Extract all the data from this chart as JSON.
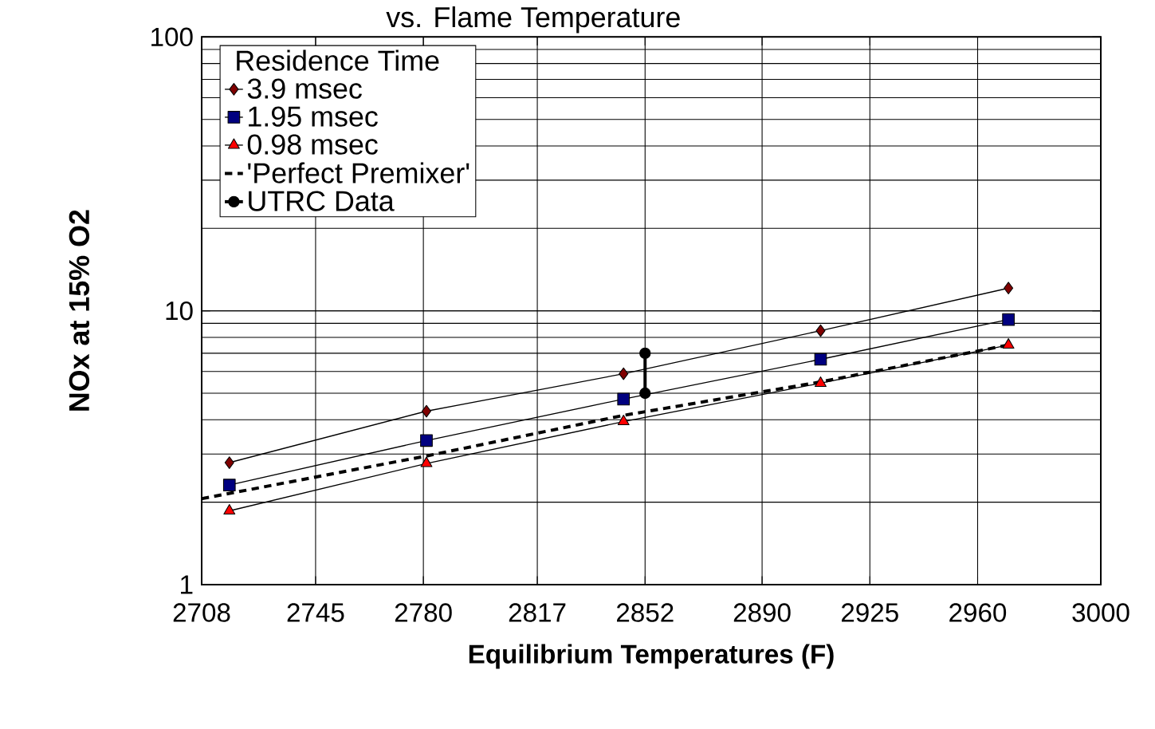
{
  "chart_data": {
    "type": "line",
    "title": "vs. Flame Temperature",
    "xlabel": "Equilibrium Temperatures (F)",
    "ylabel": "NOx at 15% O2",
    "legend_title": "Residence Time",
    "log": "y",
    "grid": true,
    "legend": "top left",
    "xlim": [
      2708,
      3000
    ],
    "xticks": [
      2708,
      2745,
      2780,
      2817,
      2852,
      2890,
      2925,
      2960,
      3000
    ],
    "ylim": [
      1,
      100
    ],
    "yticks": [
      1,
      10,
      100
    ],
    "series": [
      {
        "name": "3.9  msec",
        "color": "#800000",
        "marker": "diamond",
        "line_style": "solid",
        "x": [
          2717,
          2781,
          2845,
          2909,
          2970
        ],
        "values": [
          2.79,
          4.3,
          5.89,
          8.46,
          12.1
        ]
      },
      {
        "name": "1.95 msec",
        "color": "#000080",
        "marker": "square",
        "line_style": "solid",
        "x": [
          2717,
          2781,
          2845,
          2909,
          2970
        ],
        "values": [
          2.31,
          3.36,
          4.76,
          6.65,
          9.29
        ]
      },
      {
        "name": "0.98 msec",
        "color": "#ff0000",
        "marker": "triangle",
        "line_style": "solid",
        "x": [
          2717,
          2781,
          2845,
          2909,
          2970
        ],
        "values": [
          1.86,
          2.77,
          3.94,
          5.44,
          7.5
        ]
      },
      {
        "name": "'Perfect Premixer'",
        "color": "#000000",
        "marker": "none",
        "line_style": "dashed",
        "x": [
          2708,
          2781,
          2845,
          2909,
          2970
        ],
        "values": [
          2.06,
          2.95,
          4.15,
          5.5,
          7.5
        ]
      },
      {
        "name": "UTRC Data",
        "color": "#000000",
        "marker": "circle",
        "line_style": "solid",
        "x": [
          2852,
          2852
        ],
        "values": [
          7.0,
          5.0
        ]
      }
    ]
  }
}
